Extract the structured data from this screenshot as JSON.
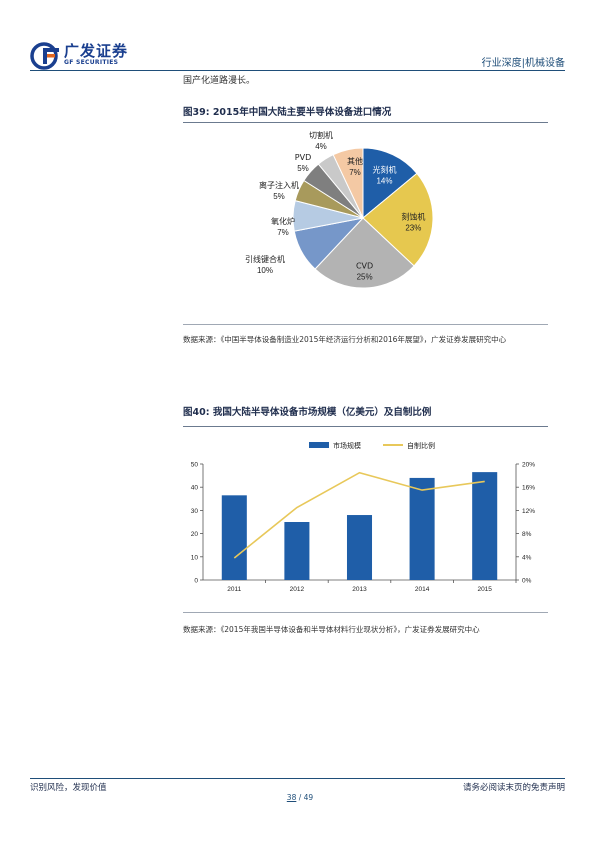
{
  "header": {
    "logo_cn": "广发证券",
    "logo_en": "GF SECURITIES",
    "section": "行业深度|机械设备"
  },
  "intro_text": "国产化道路漫长。",
  "figure39": {
    "title": "图39: 2015年中国大陆主要半导体设备进口情况",
    "source": "数据来源：《中国半导体设备制造业2015年经济运行分析和2016年展望》，广发证券发展研究中心"
  },
  "figure40": {
    "title": "图40: 我国大陆半导体设备市场规模（亿美元）及自制比例",
    "source": "数据来源：《2015年我国半导体设备和半导体材料行业现状分析》，广发证券发展研究中心"
  },
  "chart_data": [
    {
      "type": "pie",
      "slices": [
        {
          "label": "光刻机",
          "value": 14,
          "display": "14%",
          "color": "#1f5ea8"
        },
        {
          "label": "刻蚀机",
          "value": 23,
          "display": "23%",
          "color": "#e6c84f"
        },
        {
          "label": "CVD",
          "value": 25,
          "display": "25%",
          "color": "#b3b3b3"
        },
        {
          "label": "引线键合机",
          "value": 10,
          "display": "10%",
          "color": "#7697c9"
        },
        {
          "label": "氧化炉",
          "value": 7,
          "display": "7%",
          "color": "#b6cbe3"
        },
        {
          "label": "离子注入机",
          "value": 5,
          "display": "5%",
          "color": "#a89a5c"
        },
        {
          "label": "PVD",
          "value": 5,
          "display": "5%",
          "color": "#7f7f7f"
        },
        {
          "label": "切割机",
          "value": 4,
          "display": "4%",
          "color": "#c9c9c9"
        },
        {
          "label": "其他",
          "value": 7,
          "display": "7%",
          "color": "#f4c9a4"
        }
      ]
    },
    {
      "type": "bar",
      "categories": [
        "2011",
        "2012",
        "2013",
        "2014",
        "2015"
      ],
      "series": [
        {
          "name": "市场规模",
          "kind": "bar",
          "axis": "left",
          "values": [
            36.5,
            25,
            28,
            44,
            46.5
          ],
          "color": "#1f5ea8"
        },
        {
          "name": "自制比例",
          "kind": "line",
          "axis": "right",
          "values": [
            3.8,
            12.5,
            18.5,
            15.5,
            17.0
          ],
          "color": "#e8c85a"
        }
      ],
      "y_left": {
        "min": 0,
        "max": 50,
        "ticks": [
          "0",
          "10",
          "20",
          "30",
          "40",
          "50"
        ]
      },
      "y_right": {
        "min": 0,
        "max": 20,
        "ticks": [
          "0%",
          "4%",
          "8%",
          "12%",
          "16%",
          "20%"
        ]
      },
      "legend": "top-center",
      "grid": false
    }
  ],
  "footer": {
    "left": "识别风险，发现价值",
    "right": "请务必阅读末页的免责声明",
    "page_current": "38",
    "page_sep": " / ",
    "page_total": "49"
  }
}
